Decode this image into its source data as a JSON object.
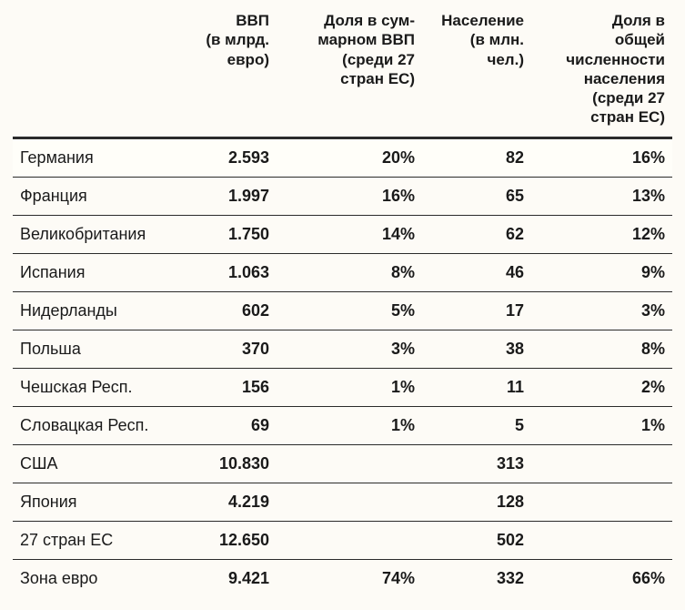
{
  "table": {
    "background_color": "#fdfbf6",
    "rule_color": "#2b2b2b",
    "header_fontsize_pt": 13,
    "body_fontsize_pt": 14,
    "columns": [
      {
        "key": "country",
        "label": "",
        "align": "left",
        "bold": false
      },
      {
        "key": "gdp",
        "label": "ВВП\n(в млрд.\nевро)",
        "align": "right",
        "bold": true
      },
      {
        "key": "gdp_share",
        "label": "Доля в сум-\nмарном ВВП\n(среди 27\nстран ЕС)",
        "align": "right",
        "bold": true
      },
      {
        "key": "pop",
        "label": "Население\n(в млн.\nчел.)",
        "align": "right",
        "bold": true
      },
      {
        "key": "pop_share",
        "label": "Доля в\nобщей\nчисленности\nнаселения\n(среди 27\nстран ЕС)",
        "align": "right",
        "bold": true
      }
    ],
    "rows": [
      {
        "country": "Германия",
        "gdp": "2.593",
        "gdp_share": "20%",
        "pop": "82",
        "pop_share": "16%",
        "highlight": true
      },
      {
        "country": "Франция",
        "gdp": "1.997",
        "gdp_share": "16%",
        "pop": "65",
        "pop_share": "13%"
      },
      {
        "country": "Великобритания",
        "gdp": "1.750",
        "gdp_share": "14%",
        "pop": "62",
        "pop_share": "12%"
      },
      {
        "country": "Испания",
        "gdp": "1.063",
        "gdp_share": "8%",
        "pop": "46",
        "pop_share": "9%"
      },
      {
        "country": "Нидерланды",
        "gdp": "602",
        "gdp_share": "5%",
        "pop": "17",
        "pop_share": "3%"
      },
      {
        "country": "Польша",
        "gdp": "370",
        "gdp_share": "3%",
        "pop": "38",
        "pop_share": "8%"
      },
      {
        "country": "Чешская Респ.",
        "gdp": "156",
        "gdp_share": "1%",
        "pop": "11",
        "pop_share": "2%"
      },
      {
        "country": "Словацкая Респ.",
        "gdp": "69",
        "gdp_share": "1%",
        "pop": "5",
        "pop_share": "1%"
      },
      {
        "country": "США",
        "gdp": "10.830",
        "gdp_share": "",
        "pop": "313",
        "pop_share": ""
      },
      {
        "country": "Япония",
        "gdp": "4.219",
        "gdp_share": "",
        "pop": "128",
        "pop_share": ""
      },
      {
        "country": "27 стран ЕС",
        "gdp": "12.650",
        "gdp_share": "",
        "pop": "502",
        "pop_share": ""
      },
      {
        "country": "Зона евро",
        "gdp": "9.421",
        "gdp_share": "74%",
        "pop": "332",
        "pop_share": "66%"
      }
    ]
  }
}
